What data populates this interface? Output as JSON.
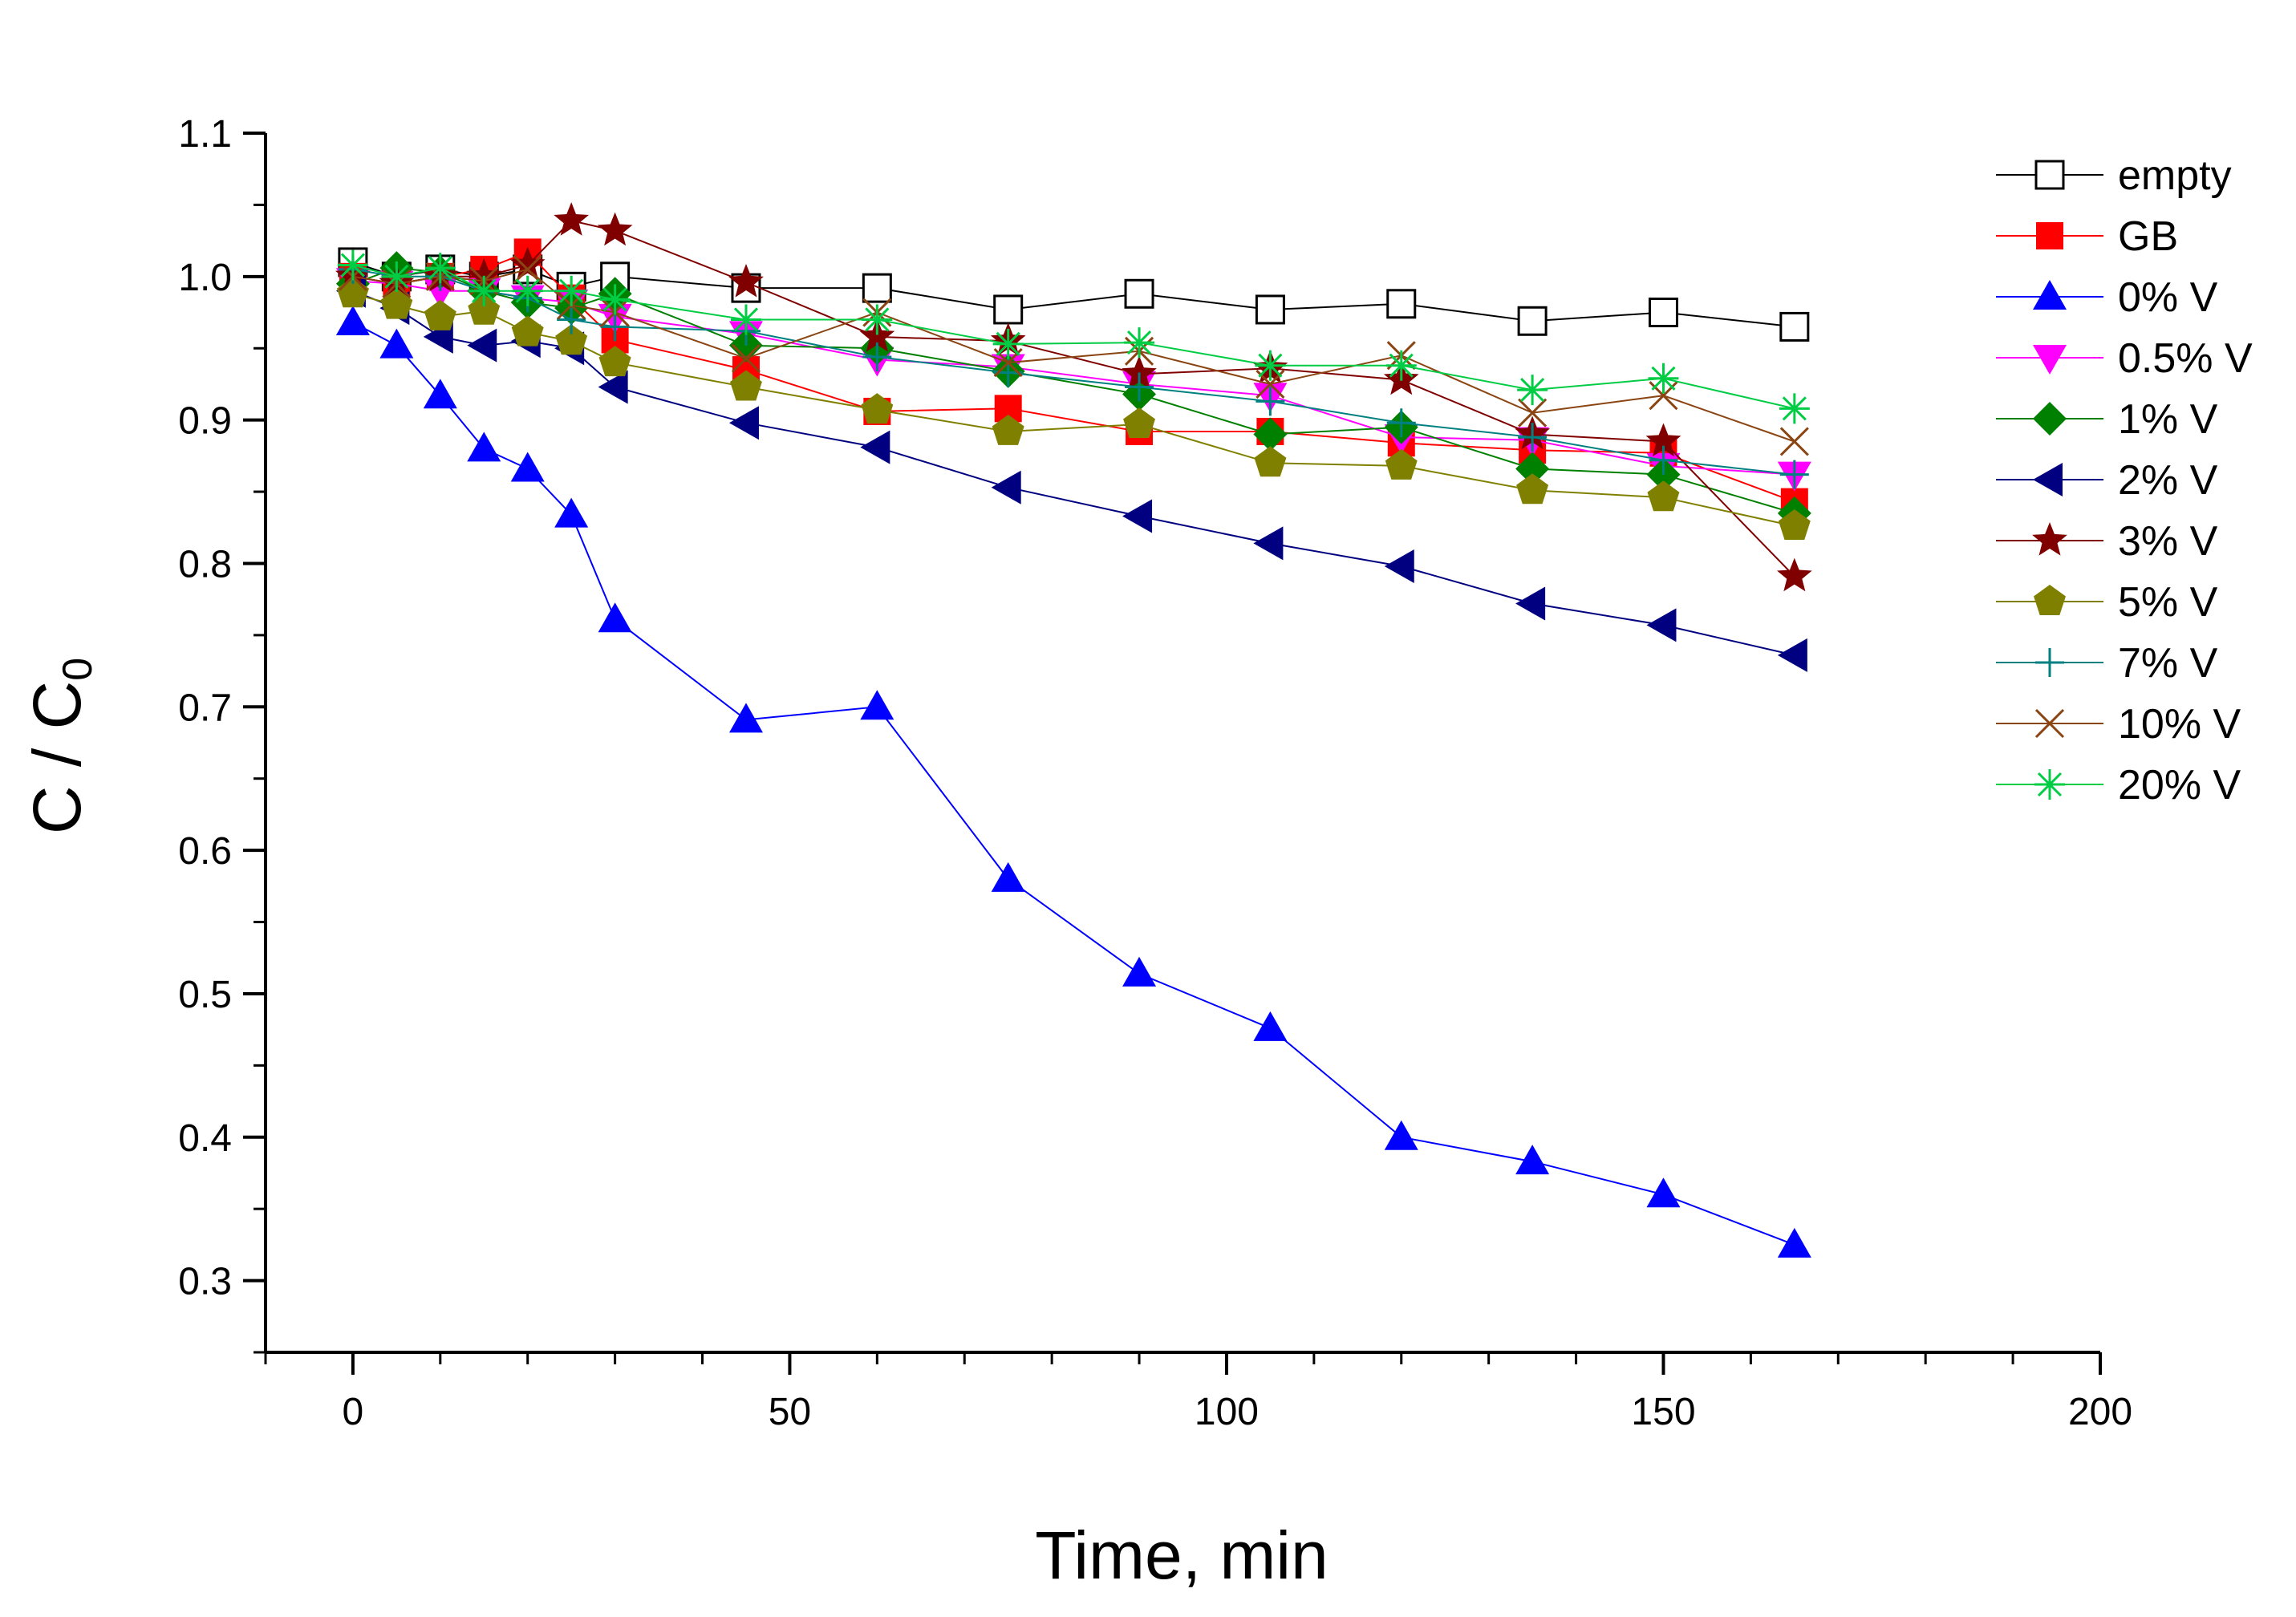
{
  "chart_data": {
    "type": "line",
    "title": "",
    "xlabel": "Time, min",
    "ylabel": "C / C",
    "ylabel_subscript": "0",
    "xlim": [
      -10,
      200
    ],
    "ylim": [
      0.25,
      1.1
    ],
    "xticks": [
      0,
      50,
      100,
      150,
      200
    ],
    "xtick_labels": [
      "0",
      "50",
      "100",
      "150",
      "200"
    ],
    "yticks": [
      0.3,
      0.4,
      0.5,
      0.6,
      0.7,
      0.8,
      0.9,
      1.0,
      1.1
    ],
    "ytick_labels": [
      "0.3",
      "0.4",
      "0.5",
      "0.6",
      "0.7",
      "0.8",
      "0.9",
      "1.0",
      "1.1"
    ],
    "grid": false,
    "legend_position": "top-right",
    "series": [
      {
        "name": "empty",
        "color": "#000000",
        "marker": "square-open",
        "x": [
          0,
          5,
          10,
          15,
          20,
          25,
          30,
          45,
          60,
          75,
          90,
          105,
          120,
          135,
          150,
          165
        ],
        "y": [
          1.01,
          1.0,
          1.005,
          1.0,
          1.005,
          0.993,
          1.0,
          0.992,
          0.992,
          0.977,
          0.988,
          0.977,
          0.981,
          0.969,
          0.975,
          0.965
        ]
      },
      {
        "name": "GB",
        "color": "#ff0000",
        "marker": "square",
        "x": [
          0,
          5,
          10,
          15,
          20,
          25,
          30,
          45,
          60,
          75,
          90,
          105,
          120,
          135,
          150,
          165
        ],
        "y": [
          1.0,
          0.995,
          1.0,
          1.005,
          1.017,
          0.985,
          0.956,
          0.935,
          0.906,
          0.908,
          0.892,
          0.892,
          0.884,
          0.879,
          0.877,
          0.843
        ]
      },
      {
        "name": "0% V",
        "color": "#0000ff",
        "marker": "triangle-up",
        "x": [
          0,
          5,
          10,
          15,
          20,
          25,
          30,
          45,
          60,
          75,
          90,
          105,
          120,
          135,
          150,
          165
        ],
        "y": [
          0.968,
          0.952,
          0.917,
          0.88,
          0.866,
          0.834,
          0.761,
          0.691,
          0.7,
          0.58,
          0.514,
          0.476,
          0.4,
          0.383,
          0.36,
          0.325
        ]
      },
      {
        "name": "0.5% V",
        "color": "#ff00ff",
        "marker": "triangle-down",
        "x": [
          0,
          5,
          10,
          15,
          20,
          25,
          30,
          45,
          60,
          75,
          90,
          105,
          120,
          135,
          150,
          165
        ],
        "y": [
          0.997,
          0.995,
          0.99,
          0.99,
          0.985,
          0.982,
          0.972,
          0.96,
          0.942,
          0.937,
          0.925,
          0.917,
          0.888,
          0.886,
          0.868,
          0.862
        ]
      },
      {
        "name": "1% V",
        "color": "#008000",
        "marker": "diamond",
        "x": [
          0,
          5,
          10,
          15,
          20,
          25,
          30,
          45,
          60,
          75,
          90,
          105,
          120,
          135,
          150,
          165
        ],
        "y": [
          0.995,
          1.006,
          1.003,
          0.99,
          0.982,
          0.978,
          0.988,
          0.952,
          0.95,
          0.934,
          0.918,
          0.89,
          0.895,
          0.866,
          0.862,
          0.835
        ]
      },
      {
        "name": "2% V",
        "color": "#000080",
        "marker": "triangle-left",
        "x": [
          0,
          5,
          10,
          15,
          20,
          25,
          30,
          45,
          60,
          75,
          90,
          105,
          120,
          135,
          150,
          165
        ],
        "y": [
          0.99,
          0.978,
          0.958,
          0.952,
          0.955,
          0.95,
          0.923,
          0.898,
          0.881,
          0.853,
          0.833,
          0.814,
          0.798,
          0.772,
          0.757,
          0.736
        ]
      },
      {
        "name": "3% V",
        "color": "#800000",
        "marker": "star",
        "x": [
          0,
          5,
          10,
          15,
          20,
          25,
          30,
          45,
          60,
          75,
          90,
          105,
          120,
          135,
          150,
          165
        ],
        "y": [
          1.0,
          0.995,
          1.0,
          1.0,
          1.008,
          1.039,
          1.032,
          0.996,
          0.958,
          0.955,
          0.932,
          0.936,
          0.928,
          0.89,
          0.885,
          0.791
        ]
      },
      {
        "name": "5% V",
        "color": "#808000",
        "marker": "pentagon",
        "x": [
          0,
          5,
          10,
          15,
          20,
          25,
          30,
          45,
          60,
          75,
          90,
          105,
          120,
          135,
          150,
          165
        ],
        "y": [
          0.988,
          0.98,
          0.972,
          0.976,
          0.961,
          0.955,
          0.94,
          0.923,
          0.907,
          0.892,
          0.897,
          0.87,
          0.868,
          0.851,
          0.846,
          0.826
        ]
      },
      {
        "name": "7% V",
        "color": "#008080",
        "marker": "plus",
        "x": [
          0,
          5,
          10,
          15,
          20,
          25,
          30,
          45,
          60,
          75,
          90,
          105,
          120,
          135,
          150,
          165
        ],
        "y": [
          1.005,
          1.0,
          1.0,
          0.99,
          0.985,
          0.97,
          0.965,
          0.962,
          0.944,
          0.933,
          0.923,
          0.913,
          0.898,
          0.888,
          0.872,
          0.862
        ]
      },
      {
        "name": "10% V",
        "color": "#8b4513",
        "marker": "x",
        "x": [
          0,
          5,
          10,
          15,
          20,
          25,
          30,
          45,
          60,
          75,
          90,
          105,
          120,
          135,
          150,
          165
        ],
        "y": [
          1.0,
          0.995,
          1.0,
          0.997,
          1.005,
          0.98,
          0.975,
          0.943,
          0.975,
          0.94,
          0.948,
          0.925,
          0.945,
          0.905,
          0.917,
          0.885
        ]
      },
      {
        "name": "20% V",
        "color": "#00cc44",
        "marker": "asterisk",
        "x": [
          0,
          5,
          10,
          15,
          20,
          25,
          30,
          45,
          60,
          75,
          90,
          105,
          120,
          135,
          150,
          165
        ],
        "y": [
          1.008,
          1.0,
          1.006,
          0.99,
          0.99,
          0.99,
          0.984,
          0.97,
          0.97,
          0.953,
          0.954,
          0.938,
          0.938,
          0.921,
          0.929,
          0.908
        ]
      }
    ]
  }
}
